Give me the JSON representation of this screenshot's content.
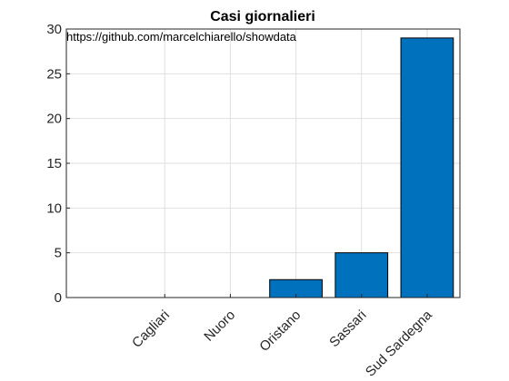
{
  "chart_data": {
    "type": "bar",
    "title": "Casi giornalieri",
    "annotation": "https://github.com/marcelchiarello/showdata",
    "categories": [
      "Cagliari",
      "Nuoro",
      "Oristano",
      "Sassari",
      "Sud Sardegna"
    ],
    "values": [
      0,
      0,
      2,
      5,
      29
    ],
    "xlabel": "",
    "ylabel": "",
    "ylim": [
      0,
      30
    ],
    "yticks": [
      0,
      5,
      10,
      15,
      20,
      25,
      30
    ],
    "grid": true,
    "bar_color": "#0072BD",
    "bar_edge_color": "#000000"
  }
}
